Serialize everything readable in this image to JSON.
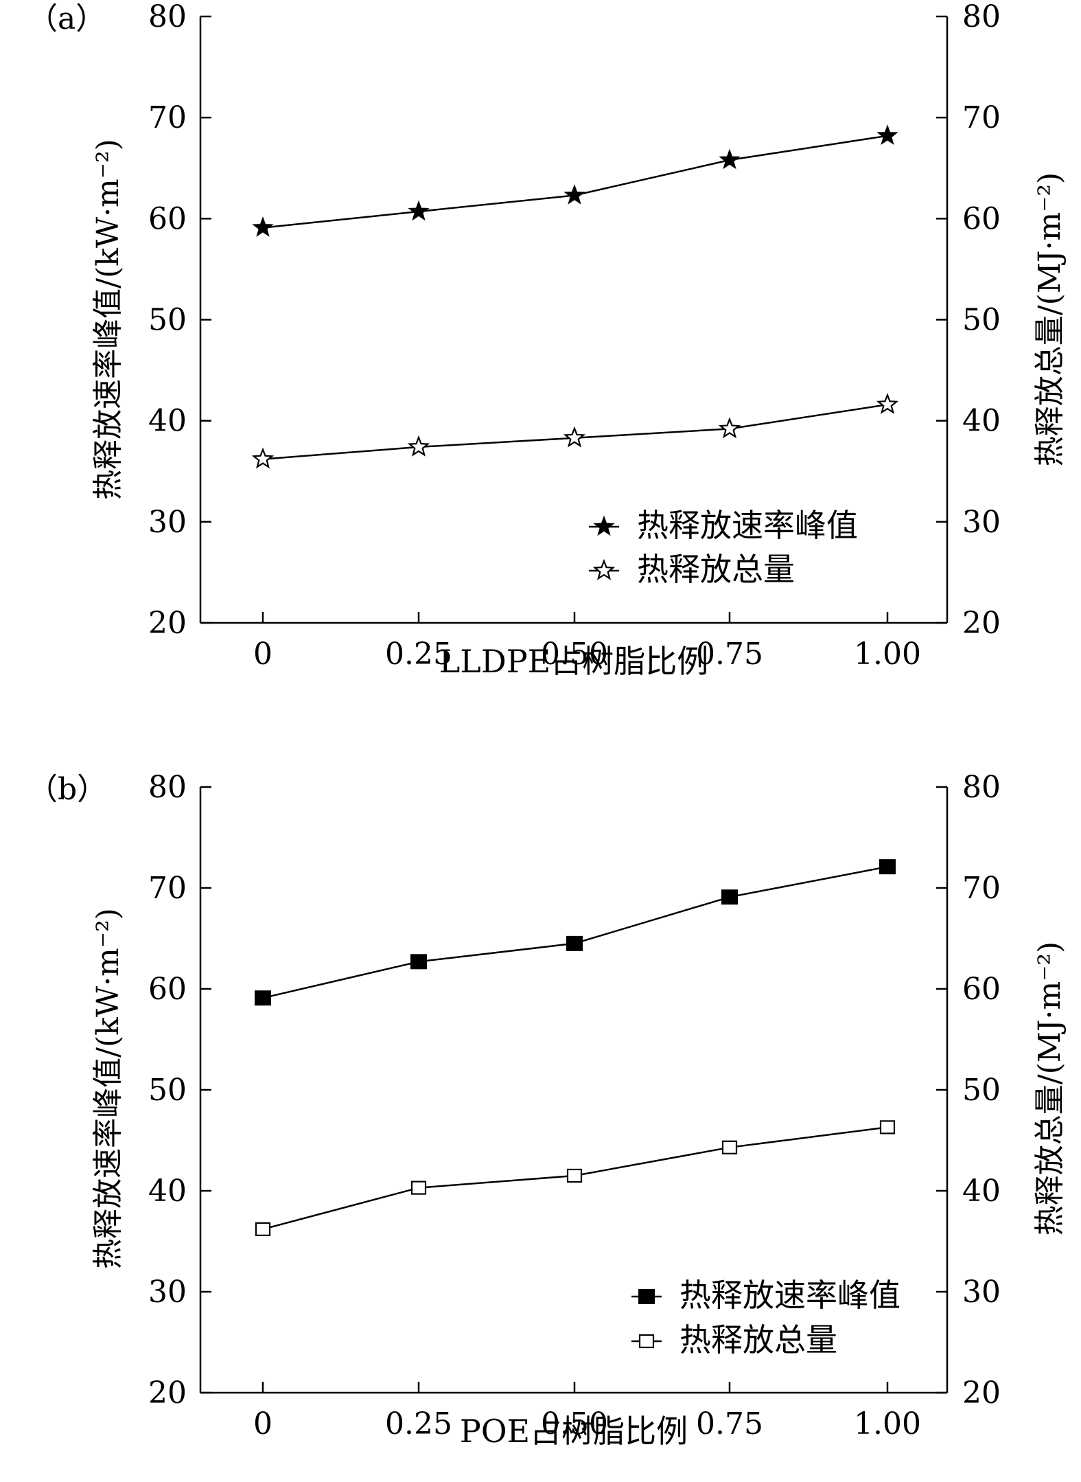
{
  "chart_data": [
    {
      "type": "line",
      "panel_label": "（a）",
      "x": [
        "0",
        "0.25",
        "0.50",
        "0.75",
        "1.00"
      ],
      "xlabel": "LLDPE占树脂比例",
      "ylabel_left": "热释放速率峰值/(kW·m⁻²)",
      "ylabel_right": "热释放总量/(MJ·m⁻²)",
      "ylim": [
        20,
        80
      ],
      "yticks": [
        "20",
        "30",
        "40",
        "50",
        "60",
        "70",
        "80"
      ],
      "grid": false,
      "legend_position": "bottom-right",
      "series": [
        {
          "name": "热释放速率峰值",
          "marker": "filled-star",
          "values": [
            59.1,
            60.7,
            62.3,
            65.8,
            68.2
          ]
        },
        {
          "name": "热释放总量",
          "marker": "open-star",
          "values": [
            36.2,
            37.4,
            38.3,
            39.2,
            41.6
          ]
        }
      ]
    },
    {
      "type": "line",
      "panel_label": "（b）",
      "x": [
        "0",
        "0.25",
        "0.50",
        "0.75",
        "1.00"
      ],
      "xlabel": "POE占树脂比例",
      "ylabel_left": "热释放速率峰值/(kW·m⁻²)",
      "ylabel_right": "热释放总量/(MJ·m⁻²)",
      "ylim": [
        20,
        80
      ],
      "yticks": [
        "20",
        "30",
        "40",
        "50",
        "60",
        "70",
        "80"
      ],
      "grid": false,
      "legend_position": "bottom-right",
      "series": [
        {
          "name": "热释放速率峰值",
          "marker": "filled-square",
          "values": [
            59.1,
            62.7,
            64.5,
            69.1,
            72.1
          ]
        },
        {
          "name": "热释放总量",
          "marker": "open-square",
          "values": [
            36.2,
            40.3,
            41.5,
            44.3,
            46.3
          ]
        }
      ]
    }
  ]
}
